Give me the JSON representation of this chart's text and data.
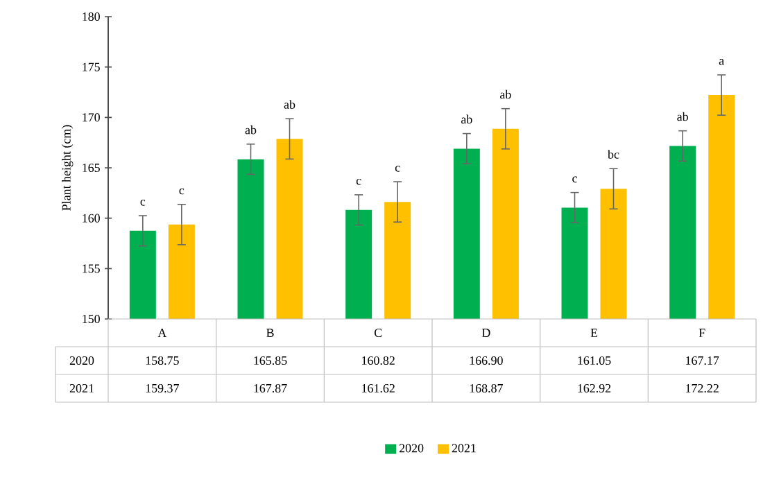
{
  "chart_data": {
    "type": "bar",
    "ylabel": "Plant height (cm)",
    "categories": [
      "A",
      "B",
      "C",
      "D",
      "E",
      "F"
    ],
    "series": [
      {
        "name": "2020",
        "color": "#00b050",
        "values": [
          158.75,
          165.85,
          160.82,
          166.9,
          161.05,
          167.17
        ],
        "errors": [
          1.5,
          1.5,
          1.5,
          1.5,
          1.5,
          1.5
        ],
        "value_labels": [
          "158.75",
          "165.85",
          "160.82",
          "166.90",
          "161.05",
          "167.17"
        ]
      },
      {
        "name": "2021",
        "color": "#ffc000",
        "values": [
          159.37,
          167.87,
          161.62,
          168.87,
          162.92,
          172.22
        ],
        "errors": [
          2.0,
          2.0,
          2.0,
          2.0,
          2.0,
          2.0
        ],
        "value_labels": [
          "159.37",
          "167.87",
          "161.62",
          "168.87",
          "162.92",
          "172.22"
        ]
      }
    ],
    "ylim": [
      150,
      180
    ],
    "yticks": [
      150,
      155,
      160,
      165,
      170,
      175,
      180
    ],
    "annotations": [
      "c",
      "c",
      "ab",
      "ab",
      "c",
      "c",
      "ab",
      "ab",
      "c",
      "bc",
      "ab",
      "a"
    ],
    "legend": "bottom",
    "grid": false
  }
}
